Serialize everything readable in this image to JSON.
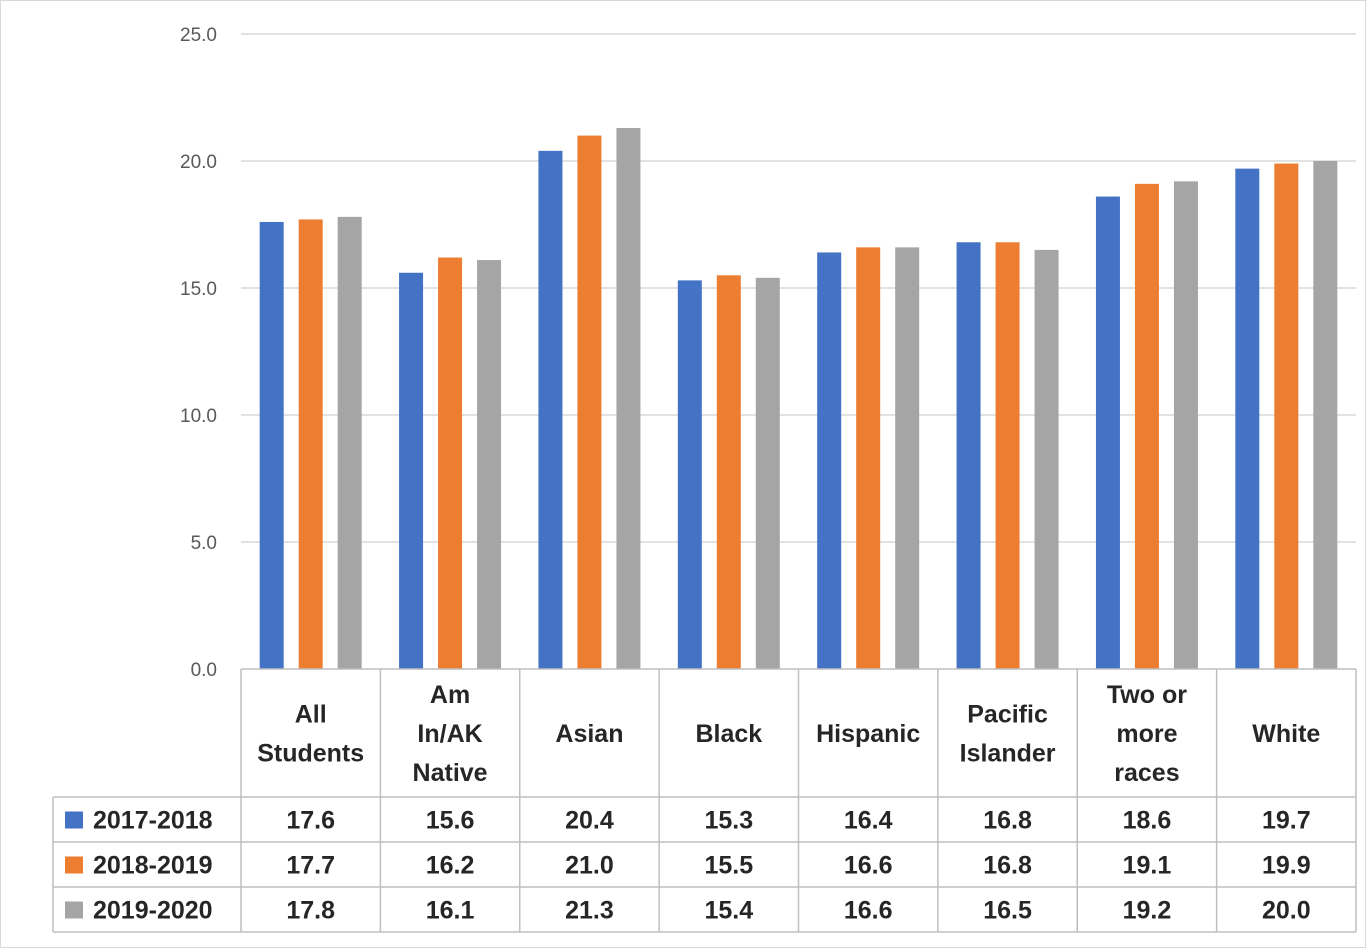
{
  "chart_data": {
    "type": "bar",
    "categories": [
      "All Students",
      "Am In/AK Native",
      "Asian",
      "Black",
      "Hispanic",
      "Pacific Islander",
      "Two or more races",
      "White"
    ],
    "category_lines": [
      [
        "All",
        "Students"
      ],
      [
        "Am",
        "In/AK",
        "Native"
      ],
      [
        "Asian"
      ],
      [
        "Black"
      ],
      [
        "Hispanic"
      ],
      [
        "Pacific",
        "Islander"
      ],
      [
        "Two or",
        "more",
        "races"
      ],
      [
        "White"
      ]
    ],
    "series": [
      {
        "name": "2017-2018",
        "color": "#4472c4",
        "values": [
          17.6,
          15.6,
          20.4,
          15.3,
          16.4,
          16.8,
          18.6,
          19.7
        ]
      },
      {
        "name": "2018-2019",
        "color": "#ed7d31",
        "values": [
          17.7,
          16.2,
          21.0,
          15.5,
          16.6,
          16.8,
          19.1,
          19.9
        ]
      },
      {
        "name": "2019-2020",
        "color": "#a5a5a5",
        "values": [
          17.8,
          16.1,
          21.3,
          15.4,
          16.6,
          16.5,
          19.2,
          20.0
        ]
      }
    ],
    "yticks": [
      "0.0",
      "5.0",
      "10.0",
      "15.0",
      "20.0",
      "25.0"
    ],
    "ylim": [
      0,
      25
    ],
    "grid": true,
    "legend": "data-table"
  }
}
